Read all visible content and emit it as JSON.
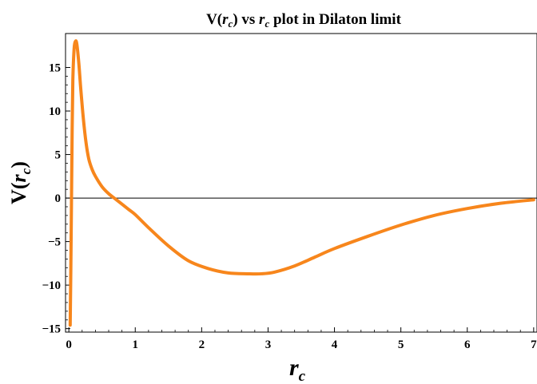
{
  "chart_data": {
    "type": "line",
    "title": "V(r_c) vs r_c plot in Dilaton limit",
    "title_parts": {
      "pre": "V(",
      "r1": "r",
      "sub1": "c",
      "mid": ") vs ",
      "r2": "r",
      "sub2": "c",
      "post": " plot in Dilaton limit"
    },
    "xlabel": "r_c",
    "xlabel_parts": {
      "main": "r",
      "sub": "c"
    },
    "ylabel": "V(r_c)",
    "ylabel_parts": {
      "pre": "V(",
      "main": "r",
      "sub": "c",
      "post": ")"
    },
    "xlim": [
      -0.05,
      7.05
    ],
    "ylim": [
      -15.4,
      18.9
    ],
    "x_ticks": [
      0,
      1,
      2,
      3,
      4,
      5,
      6,
      7
    ],
    "x_tick_labels": [
      "0",
      "1",
      "2",
      "3",
      "4",
      "5",
      "6",
      "7"
    ],
    "y_ticks": [
      -15,
      -10,
      -5,
      0,
      5,
      10,
      15
    ],
    "y_tick_labels": [
      "−15",
      "−10",
      "−5",
      "0",
      "5",
      "10",
      "15"
    ],
    "grid": false,
    "zero_line": true,
    "colors": {
      "curve": "#f7861c",
      "axes": "#000000",
      "zero_line": "#000000"
    },
    "series": [
      {
        "x": [
          0.02,
          0.03,
          0.04,
          0.05,
          0.06,
          0.08,
          0.1,
          0.12,
          0.15,
          0.18,
          0.22,
          0.26,
          0.3,
          0.35,
          0.4,
          0.5,
          0.6,
          0.7,
          0.8,
          0.9,
          1.0,
          1.2,
          1.5,
          1.8,
          2.1,
          2.4,
          2.7,
          2.9,
          3.1,
          3.4,
          3.7,
          4.0,
          4.5,
          5.0,
          5.5,
          6.0,
          6.5,
          7.0
        ],
        "y": [
          -14.6,
          -8.0,
          0.0,
          8.0,
          13.5,
          17.2,
          18.0,
          17.7,
          15.5,
          12.5,
          9.0,
          6.3,
          4.5,
          3.3,
          2.5,
          1.3,
          0.5,
          -0.1,
          -0.7,
          -1.3,
          -1.9,
          -3.4,
          -5.5,
          -7.2,
          -8.1,
          -8.6,
          -8.7,
          -8.7,
          -8.5,
          -7.8,
          -6.8,
          -5.8,
          -4.4,
          -3.1,
          -2.0,
          -1.2,
          -0.6,
          -0.2
        ]
      }
    ]
  }
}
